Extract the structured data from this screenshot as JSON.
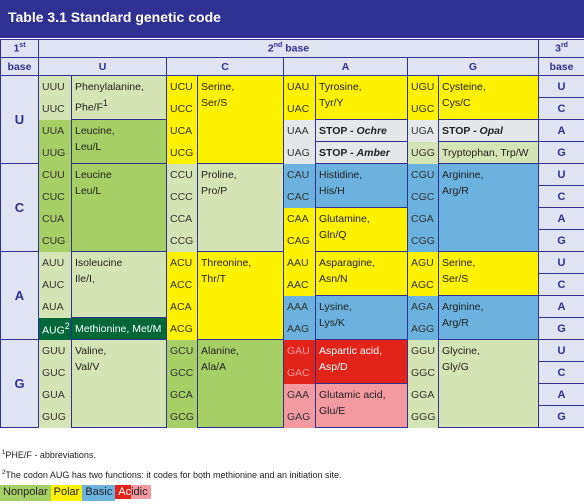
{
  "title": "Table 3.1 Standard genetic code",
  "headers": {
    "first_base_num": "1",
    "first_base_sup": "st",
    "first_base_label": "base",
    "second_base_num": "2",
    "second_base_sup": "nd",
    "second_base_label": " base",
    "third_base_num": "3",
    "third_base_sup": "rd",
    "third_base_label": "base",
    "col_u": "U",
    "col_c": "C",
    "col_a": "A",
    "col_g": "G"
  },
  "first_bases": [
    "U",
    "C",
    "A",
    "G"
  ],
  "third_bases": [
    "U",
    "C",
    "A",
    "G"
  ],
  "codons": {
    "UUU": "UUU",
    "UUC": "UUC",
    "UUA": "UUA",
    "UUG": "UUG",
    "UCU": "UCU",
    "UCC": "UCC",
    "UCA": "UCA",
    "UCG": "UCG",
    "UAU": "UAU",
    "UAC": "UAC",
    "UAA": "UAA",
    "UAG": "UAG",
    "UGU": "UGU",
    "UGC": "UGC",
    "UGA": "UGA",
    "UGG": "UGG",
    "CUU": "CUU",
    "CUC": "CUC",
    "CUA": "CUA",
    "CUG": "CUG",
    "CCU": "CCU",
    "CCC": "CCC",
    "CCA": "CCA",
    "CCG": "CCG",
    "CAU": "CAU",
    "CAC": "CAC",
    "CAA": "CAA",
    "CAG": "CAG",
    "CGU": "CGU",
    "CGC": "CGC",
    "CGA": "CGA",
    "CGG": "CGG",
    "AUU": "AUU",
    "AUC": "AUC",
    "AUA": "AUA",
    "AUG": "AUG",
    "AUG_sup": "2",
    "ACU": "ACU",
    "ACC": "ACC",
    "ACA": "ACA",
    "ACG": "ACG",
    "AAU": "AAU",
    "AAC": "AAC",
    "AAA": "AAA",
    "AAG": "AAG",
    "AGU": "AGU",
    "AGC": "AGC",
    "AGA": "AGA",
    "AGG": "AGG",
    "GUU": "GUU",
    "GUC": "GUC",
    "GUA": "GUA",
    "GUG": "GUG",
    "GCU": "GCU",
    "GCC": "GCC",
    "GCA": "GCA",
    "GCG": "GCG",
    "GAU": "GAU",
    "GAC": "GAC",
    "GAA": "GAA",
    "GAG": "GAG",
    "GGU": "GGU",
    "GGC": "GGC",
    "GGA": "GGA",
    "GGG": "GGG"
  },
  "amino_acids": {
    "phe_1": "Phenylalanine,",
    "phe_2": "Phe/F",
    "phe_sup": "1",
    "leu_u_1": "Leucine,",
    "leu_u_2": "Leu/L",
    "ser_u_1": "Serine,",
    "ser_u_2": "Ser/S",
    "tyr_1": "Tyrosine,",
    "tyr_2": "Tyr/Y",
    "stop_ochre_a": "STOP - ",
    "stop_ochre_b": "Ochre",
    "stop_amber_a": "STOP - ",
    "stop_amber_b": "Amber",
    "cys_1": "Cysteine,",
    "cys_2": "Cys/C",
    "stop_opal_a": "STOP - ",
    "stop_opal_b": "Opal",
    "trp": "Tryptophan, Trp/W",
    "leu_c_1": "Leucine",
    "leu_c_2": "Leu/L",
    "pro_1": "Proline,",
    "pro_2": "Pro/P",
    "his_1": "Histidine,",
    "his_2": "His/H",
    "gln_1": "Glutamine,",
    "gln_2": "Gln/Q",
    "arg_c_1": "Arginine,",
    "arg_c_2": "Arg/R",
    "ile_1": "Isoleucine",
    "ile_2": "Ile/I,",
    "met": "Methionine, Met/M",
    "thr_1": "Threonine,",
    "thr_2": "Thr/T",
    "asn_1": "Asparagine,",
    "asn_2": "Asn/N",
    "lys_1": "Lysine,",
    "lys_2": "Lys/K",
    "ser_a_1": "Serine,",
    "ser_a_2": "Ser/S",
    "arg_a_1": "Arginine,",
    "arg_a_2": "Arg/R",
    "val_1": "Valine,",
    "val_2": "Val/V",
    "ala_1": "Alanine,",
    "ala_2": "Ala/A",
    "asp_1": "Aspartic acid,",
    "asp_2": "Asp/D",
    "glu_1": "Glutamic acid,",
    "glu_2": "Glu/E",
    "gly_1": "Glycine,",
    "gly_2": "Gly/G"
  },
  "footnotes": {
    "note1_sup": "1",
    "note1": "PHE/F - abbreviations.",
    "note2_sup": "2",
    "note2": "The codon AUG has two functions: it codes for both methionine and an initiation site."
  },
  "legend": {
    "nonpolar": "Nonpolar",
    "polar": "Polar",
    "basic": "Basic",
    "acidic_a": "Ac",
    "acidic_b": "idic"
  },
  "colors": {
    "header_bg": "#2e3192",
    "nonpolar": "#d5e4b4",
    "nonpolar_dark": "#a6cf66",
    "polar": "#fff200",
    "basic": "#6cb2de",
    "acidic": "#e2231a",
    "acidic_light": "#f29aa0",
    "stop": "#e6e7e8",
    "methionine": "#006838"
  }
}
